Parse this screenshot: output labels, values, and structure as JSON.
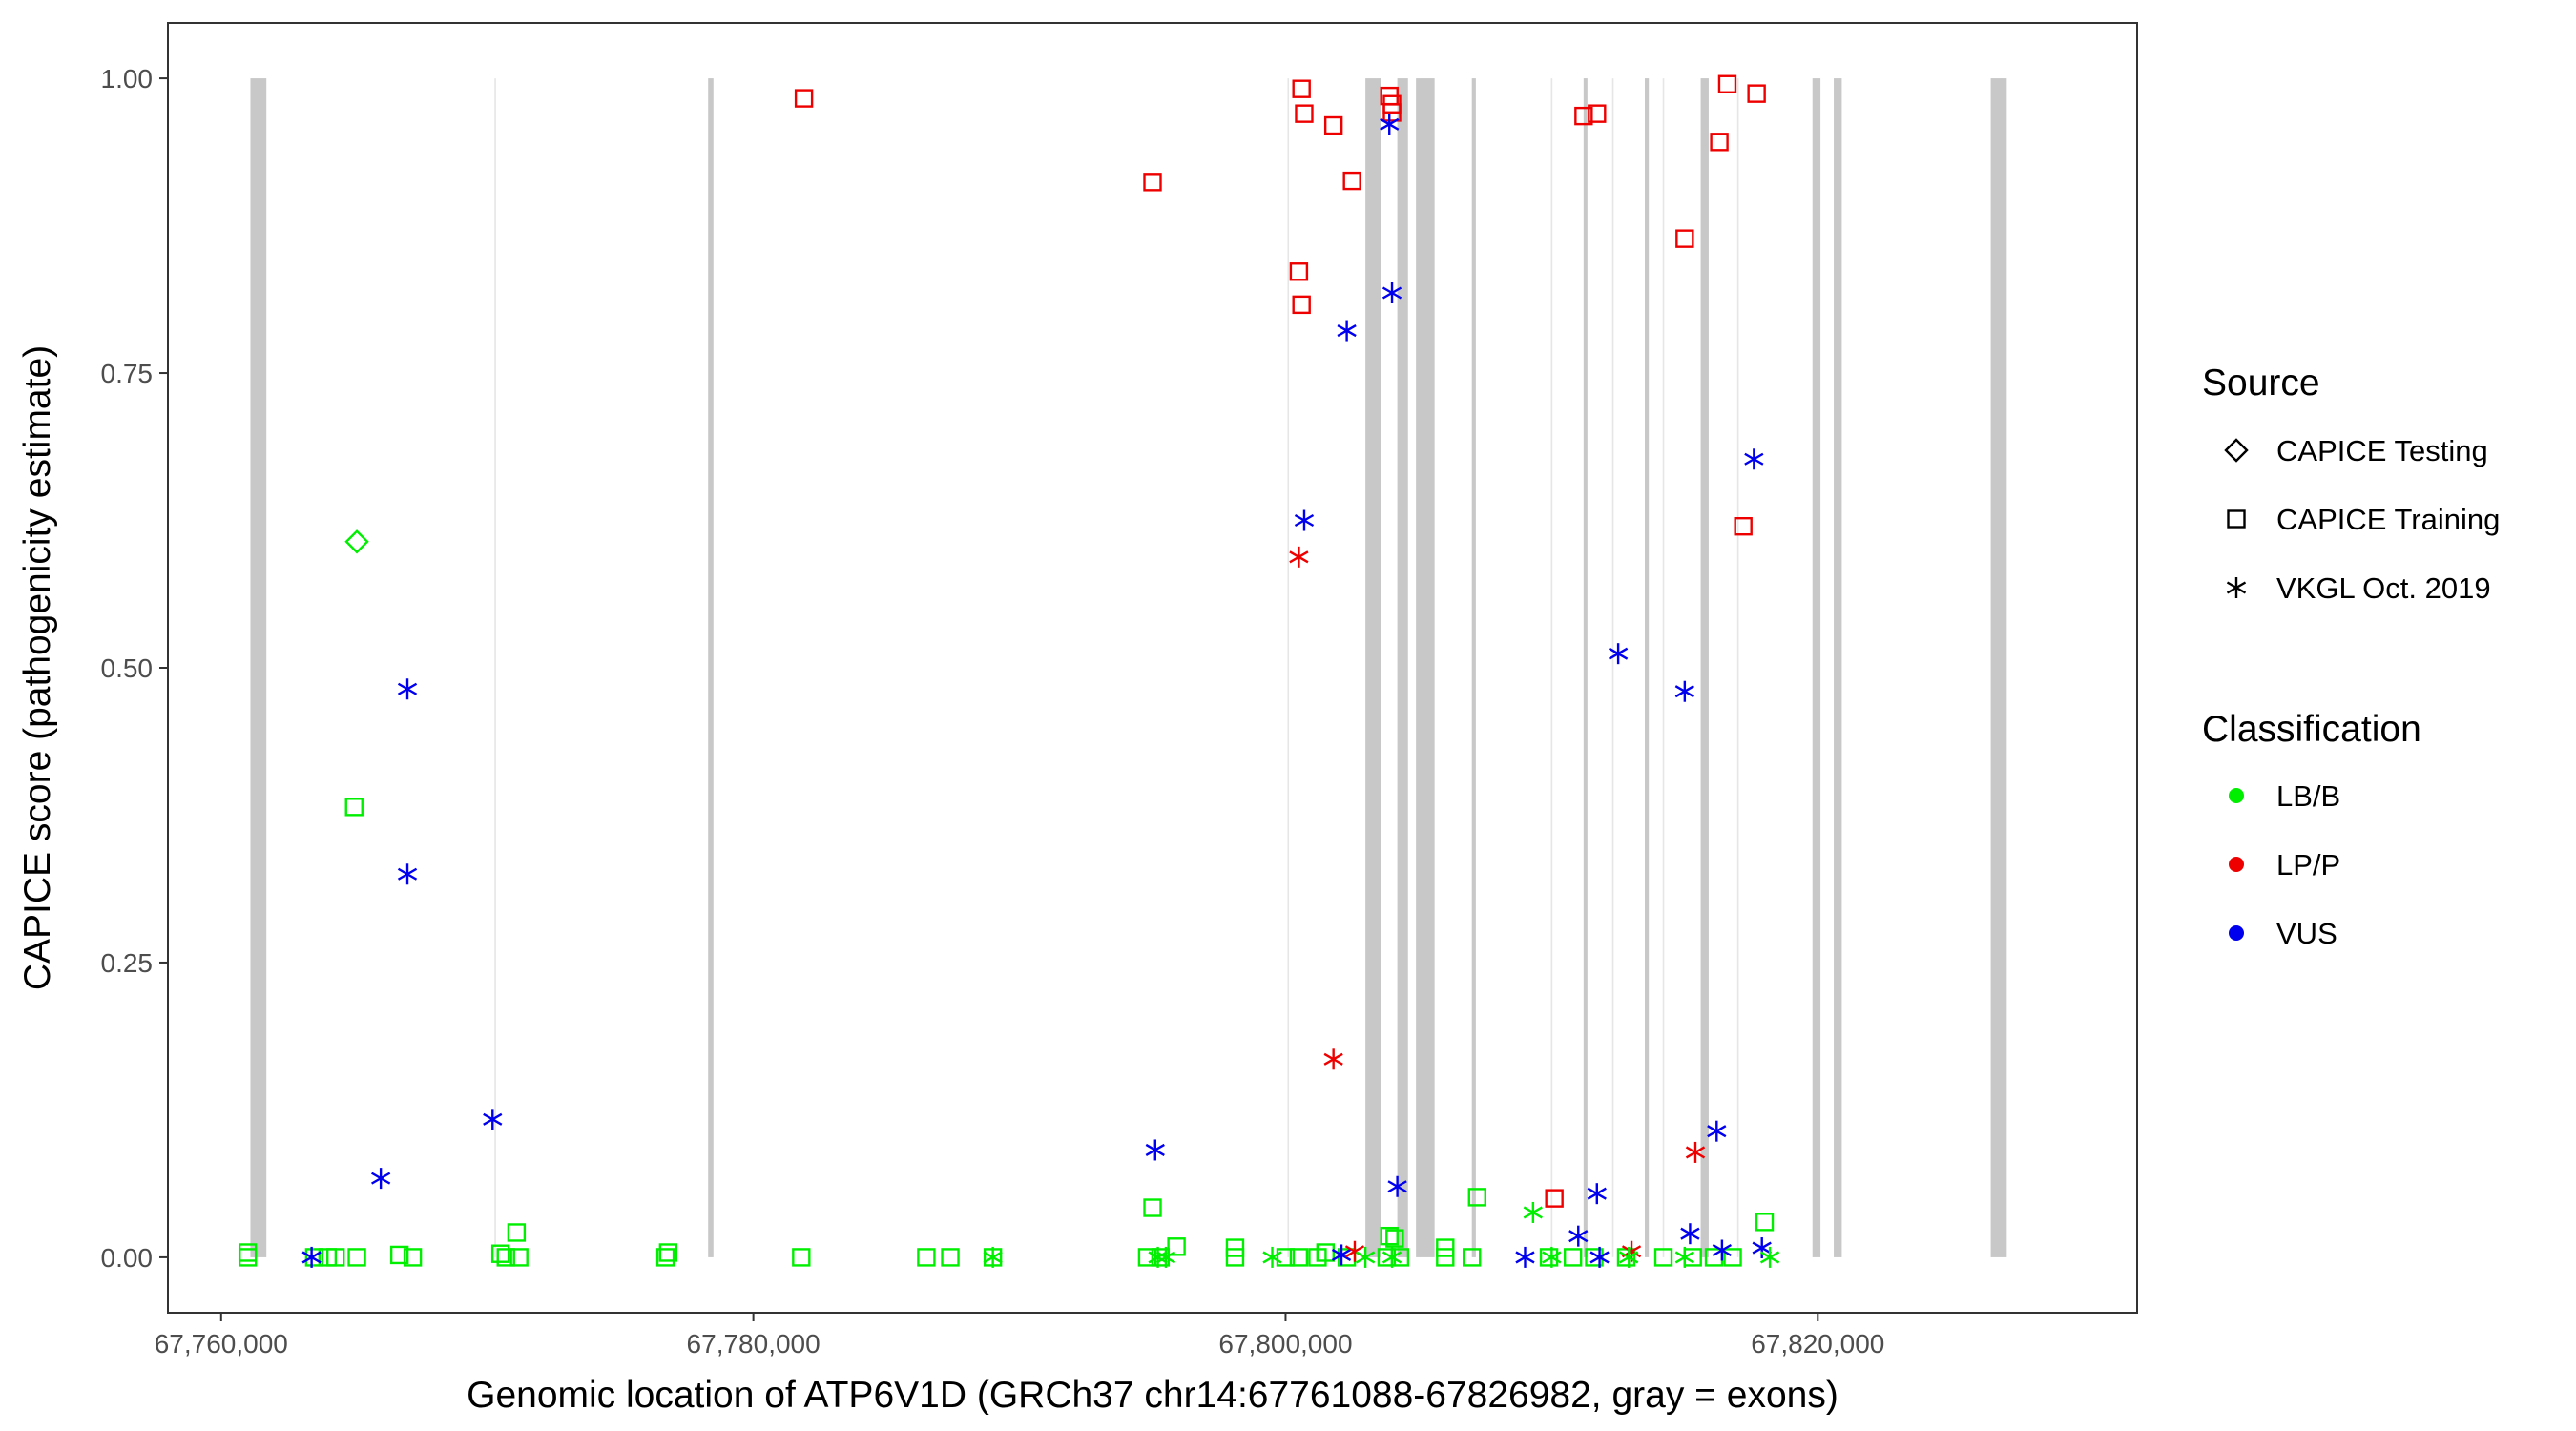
{
  "chart_data": {
    "type": "scatter",
    "title": "",
    "xlabel": "Genomic location of ATP6V1D (GRCh37 chr14:67761088-67826982, gray = exons)",
    "ylabel": "CAPICE score (pathogenicity estimate)",
    "xlim": [
      67758000,
      67832000
    ],
    "ylim": [
      -0.047,
      1.047
    ],
    "x_ticks": [
      67760000,
      67780000,
      67800000,
      67820000
    ],
    "x_tick_labels": [
      "67,760,000",
      "67,780,000",
      "67,800,000",
      "67,820,000"
    ],
    "y_ticks": [
      0,
      0.25,
      0.5,
      0.75,
      1.0
    ],
    "y_tick_labels": [
      "0.00",
      "0.25",
      "0.50",
      "0.75",
      "1.00"
    ],
    "grid": false,
    "legend_position": "right",
    "exon_color": "#c8c8c8",
    "exons": [
      [
        67761100,
        67761700
      ],
      [
        67778300,
        67778500
      ],
      [
        67803000,
        67803600
      ],
      [
        67804200,
        67804600
      ],
      [
        67804900,
        67805600
      ],
      [
        67807000,
        67807150
      ],
      [
        67811200,
        67811320
      ],
      [
        67813500,
        67813650
      ],
      [
        67815600,
        67815900
      ],
      [
        67819800,
        67820100
      ],
      [
        67820600,
        67820900
      ],
      [
        67826500,
        67827100
      ]
    ],
    "thin_lines": [
      67770300,
      67800100,
      67810000,
      67812300,
      67814200,
      67817000
    ],
    "source_legend": {
      "title": "Source",
      "items": [
        {
          "name": "CAPICE Testing",
          "shape": "diamond"
        },
        {
          "name": "CAPICE Training",
          "shape": "square"
        },
        {
          "name": "VKGL Oct. 2019",
          "shape": "asterisk"
        }
      ]
    },
    "class_legend": {
      "title": "Classification",
      "items": [
        {
          "name": "LB/B",
          "color": "#00ee00"
        },
        {
          "name": "LP/P",
          "color": "#ee0000"
        },
        {
          "name": "VUS",
          "color": "#0000ee"
        }
      ]
    },
    "series": [
      {
        "name": "CAPICE Testing",
        "shape": "diamond",
        "points": [
          {
            "x": 67765100,
            "y": 0.607,
            "c": "LB/B"
          }
        ]
      },
      {
        "name": "CAPICE Training",
        "shape": "square",
        "points": [
          {
            "x": 67761000,
            "y": 0.0,
            "c": "LB/B"
          },
          {
            "x": 67761000,
            "y": 0.004,
            "c": "LB/B"
          },
          {
            "x": 67763500,
            "y": 0.0,
            "c": "LB/B"
          },
          {
            "x": 67764000,
            "y": 0.0,
            "c": "LB/B"
          },
          {
            "x": 67764300,
            "y": 0.0,
            "c": "LB/B"
          },
          {
            "x": 67765100,
            "y": 0.0,
            "c": "LB/B"
          },
          {
            "x": 67765000,
            "y": 0.382,
            "c": "LB/B"
          },
          {
            "x": 67766700,
            "y": 0.002,
            "c": "LB/B"
          },
          {
            "x": 67767200,
            "y": 0.0,
            "c": "LB/B"
          },
          {
            "x": 67770500,
            "y": 0.003,
            "c": "LB/B"
          },
          {
            "x": 67770700,
            "y": 0.0,
            "c": "LB/B"
          },
          {
            "x": 67771200,
            "y": 0.0,
            "c": "LB/B"
          },
          {
            "x": 67771100,
            "y": 0.021,
            "c": "LB/B"
          },
          {
            "x": 67776700,
            "y": 0.0,
            "c": "LB/B"
          },
          {
            "x": 67776800,
            "y": 0.004,
            "c": "LB/B"
          },
          {
            "x": 67781800,
            "y": 0.0,
            "c": "LB/B"
          },
          {
            "x": 67786500,
            "y": 0.0,
            "c": "LB/B"
          },
          {
            "x": 67787400,
            "y": 0.0,
            "c": "LB/B"
          },
          {
            "x": 67789000,
            "y": 0.0,
            "c": "LB/B"
          },
          {
            "x": 67794800,
            "y": 0.0,
            "c": "LB/B"
          },
          {
            "x": 67795000,
            "y": 0.042,
            "c": "LB/B"
          },
          {
            "x": 67795300,
            "y": 0.0,
            "c": "LB/B"
          },
          {
            "x": 67795900,
            "y": 0.009,
            "c": "LB/B"
          },
          {
            "x": 67798100,
            "y": 0.0,
            "c": "LB/B"
          },
          {
            "x": 67798100,
            "y": 0.008,
            "c": "LB/B"
          },
          {
            "x": 67800000,
            "y": 0.0,
            "c": "LB/B"
          },
          {
            "x": 67800500,
            "y": 0.0,
            "c": "LB/B"
          },
          {
            "x": 67801200,
            "y": 0.0,
            "c": "LB/B"
          },
          {
            "x": 67801500,
            "y": 0.004,
            "c": "LB/B"
          },
          {
            "x": 67802300,
            "y": 0.0,
            "c": "LB/B"
          },
          {
            "x": 67803800,
            "y": 0.0,
            "c": "LB/B"
          },
          {
            "x": 67803900,
            "y": 0.018,
            "c": "LB/B"
          },
          {
            "x": 67804100,
            "y": 0.016,
            "c": "LB/B"
          },
          {
            "x": 67804300,
            "y": 0.0,
            "c": "LB/B"
          },
          {
            "x": 67806000,
            "y": 0.0,
            "c": "LB/B"
          },
          {
            "x": 67806000,
            "y": 0.008,
            "c": "LB/B"
          },
          {
            "x": 67807000,
            "y": 0.0,
            "c": "LB/B"
          },
          {
            "x": 67807200,
            "y": 0.051,
            "c": "LB/B"
          },
          {
            "x": 67809900,
            "y": 0.0,
            "c": "LB/B"
          },
          {
            "x": 67810800,
            "y": 0.0,
            "c": "LB/B"
          },
          {
            "x": 67811600,
            "y": 0.0,
            "c": "LB/B"
          },
          {
            "x": 67812800,
            "y": 0.0,
            "c": "LB/B"
          },
          {
            "x": 67814200,
            "y": 0.0,
            "c": "LB/B"
          },
          {
            "x": 67815300,
            "y": 0.0,
            "c": "LB/B"
          },
          {
            "x": 67816100,
            "y": 0.0,
            "c": "LB/B"
          },
          {
            "x": 67816800,
            "y": 0.0,
            "c": "LB/B"
          },
          {
            "x": 67818000,
            "y": 0.03,
            "c": "LB/B"
          },
          {
            "x": 67781900,
            "y": 0.983,
            "c": "LP/P"
          },
          {
            "x": 67795000,
            "y": 0.912,
            "c": "LP/P"
          },
          {
            "x": 67800600,
            "y": 0.991,
            "c": "LP/P"
          },
          {
            "x": 67800700,
            "y": 0.97,
            "c": "LP/P"
          },
          {
            "x": 67800500,
            "y": 0.836,
            "c": "LP/P"
          },
          {
            "x": 67800600,
            "y": 0.808,
            "c": "LP/P"
          },
          {
            "x": 67801800,
            "y": 0.96,
            "c": "LP/P"
          },
          {
            "x": 67802500,
            "y": 0.913,
            "c": "LP/P"
          },
          {
            "x": 67803900,
            "y": 0.985,
            "c": "LP/P"
          },
          {
            "x": 67804000,
            "y": 0.978,
            "c": "LP/P"
          },
          {
            "x": 67804000,
            "y": 0.971,
            "c": "LP/P"
          },
          {
            "x": 67811200,
            "y": 0.968,
            "c": "LP/P"
          },
          {
            "x": 67811700,
            "y": 0.97,
            "c": "LP/P"
          },
          {
            "x": 67810100,
            "y": 0.05,
            "c": "LP/P"
          },
          {
            "x": 67815000,
            "y": 0.864,
            "c": "LP/P"
          },
          {
            "x": 67816300,
            "y": 0.946,
            "c": "LP/P"
          },
          {
            "x": 67816600,
            "y": 0.995,
            "c": "LP/P"
          },
          {
            "x": 67817200,
            "y": 0.62,
            "c": "LP/P"
          },
          {
            "x": 67817700,
            "y": 0.987,
            "c": "LP/P"
          }
        ]
      },
      {
        "name": "VKGL Oct. 2019",
        "shape": "asterisk",
        "points": [
          {
            "x": 67763400,
            "y": 0.0,
            "c": "VUS"
          },
          {
            "x": 67766000,
            "y": 0.067,
            "c": "VUS"
          },
          {
            "x": 67767000,
            "y": 0.482,
            "c": "VUS"
          },
          {
            "x": 67767000,
            "y": 0.325,
            "c": "VUS"
          },
          {
            "x": 67770200,
            "y": 0.117,
            "c": "VUS"
          },
          {
            "x": 67795100,
            "y": 0.091,
            "c": "VUS"
          },
          {
            "x": 67800700,
            "y": 0.625,
            "c": "VUS"
          },
          {
            "x": 67802300,
            "y": 0.786,
            "c": "VUS"
          },
          {
            "x": 67802100,
            "y": 0.002,
            "c": "VUS"
          },
          {
            "x": 67803900,
            "y": 0.961,
            "c": "VUS"
          },
          {
            "x": 67804000,
            "y": 0.818,
            "c": "VUS"
          },
          {
            "x": 67804200,
            "y": 0.06,
            "c": "VUS"
          },
          {
            "x": 67809000,
            "y": 0.0,
            "c": "VUS"
          },
          {
            "x": 67811000,
            "y": 0.018,
            "c": "VUS"
          },
          {
            "x": 67811700,
            "y": 0.054,
            "c": "VUS"
          },
          {
            "x": 67811800,
            "y": 0.0,
            "c": "VUS"
          },
          {
            "x": 67812500,
            "y": 0.512,
            "c": "VUS"
          },
          {
            "x": 67815000,
            "y": 0.48,
            "c": "VUS"
          },
          {
            "x": 67815200,
            "y": 0.02,
            "c": "VUS"
          },
          {
            "x": 67816200,
            "y": 0.107,
            "c": "VUS"
          },
          {
            "x": 67816400,
            "y": 0.006,
            "c": "VUS"
          },
          {
            "x": 67817600,
            "y": 0.677,
            "c": "VUS"
          },
          {
            "x": 67817900,
            "y": 0.008,
            "c": "VUS"
          },
          {
            "x": 67800500,
            "y": 0.594,
            "c": "LP/P"
          },
          {
            "x": 67801800,
            "y": 0.168,
            "c": "LP/P"
          },
          {
            "x": 67802600,
            "y": 0.005,
            "c": "LP/P"
          },
          {
            "x": 67813000,
            "y": 0.005,
            "c": "LP/P"
          },
          {
            "x": 67815400,
            "y": 0.089,
            "c": "LP/P"
          },
          {
            "x": 67789000,
            "y": 0.0,
            "c": "LB/B"
          },
          {
            "x": 67795200,
            "y": 0.0,
            "c": "LB/B"
          },
          {
            "x": 67795500,
            "y": 0.0,
            "c": "LB/B"
          },
          {
            "x": 67799500,
            "y": 0.0,
            "c": "LB/B"
          },
          {
            "x": 67803000,
            "y": 0.0,
            "c": "LB/B"
          },
          {
            "x": 67804000,
            "y": 0.0,
            "c": "LB/B"
          },
          {
            "x": 67809300,
            "y": 0.038,
            "c": "LB/B"
          },
          {
            "x": 67810000,
            "y": 0.0,
            "c": "LB/B"
          },
          {
            "x": 67812900,
            "y": 0.0,
            "c": "LB/B"
          },
          {
            "x": 67815000,
            "y": 0.0,
            "c": "LB/B"
          },
          {
            "x": 67818200,
            "y": 0.0,
            "c": "LB/B"
          }
        ]
      }
    ]
  }
}
